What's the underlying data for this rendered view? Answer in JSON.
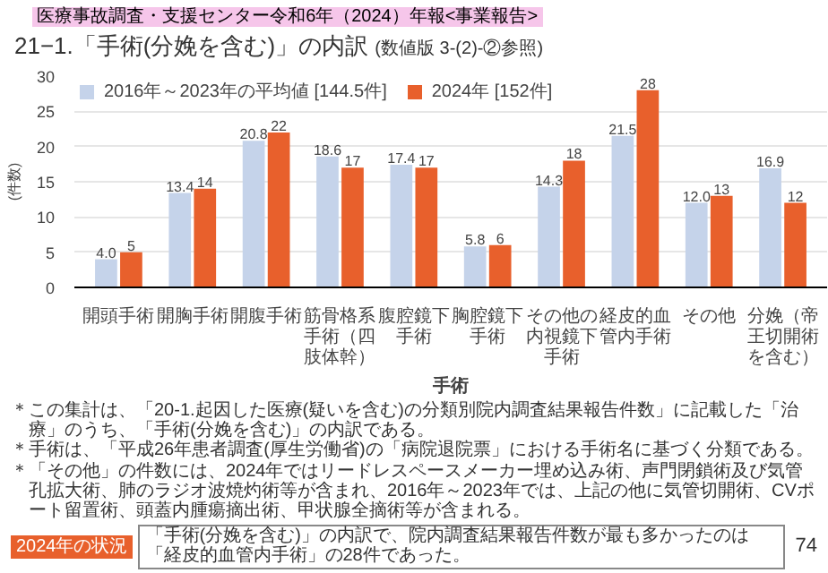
{
  "chart_data": {
    "type": "bar",
    "title": "21−1.「手術(分娩を含む)」の内訳",
    "subtitle": "(数値版 3-(2)-②参照)",
    "ylabel": "(件数)",
    "xlabel": "手術",
    "categories": [
      "開頭手術",
      "開胸手術",
      "開腹手術",
      "筋骨格系手術（四肢体幹）",
      "腹腔鏡下手術",
      "胸腔鏡下手術",
      "その他の内視鏡下手術",
      "経皮的血管内手術",
      "その他",
      "分娩（帝王切開術を含む）"
    ],
    "series": [
      {
        "name": "2016年～2023年の平均値 [144.5件]",
        "color": "#c5d3ea",
        "values": [
          4.0,
          13.4,
          20.8,
          18.6,
          17.4,
          5.8,
          14.3,
          21.5,
          12.0,
          16.9
        ],
        "value_labels": [
          "4.0",
          "13.4",
          "20.8",
          "18.6",
          "17.4",
          "5.8",
          "14.3",
          "21.5",
          "12.0",
          "16.9"
        ]
      },
      {
        "name": "2024年 [152件]",
        "color": "#e8602c",
        "values": [
          5,
          14,
          22,
          17,
          17,
          6,
          18,
          28,
          13,
          12
        ],
        "value_labels": [
          "5",
          "14",
          "22",
          "17",
          "17",
          "6",
          "18",
          "28",
          "13",
          "12"
        ]
      }
    ],
    "ylim": [
      0,
      30
    ],
    "yticks": [
      0,
      5,
      10,
      15,
      20,
      25,
      30
    ],
    "grid": "y",
    "legend": "top left",
    "annotations": [
      "医療事故調査・支援センター令和6年（2024）年報<事業報告>",
      "＊この集計は、「20-1.起因した医療(疑いを含む)の分類別院内調査結果報告件数」に記載した「治療」のうち、「手術(分娩を含む)」の内訳である。",
      "＊手術は、「平成26年患者調査(厚生労働省)の「病院退院票」における手術名に基づく分類である。",
      "＊「その他」の件数には、2024年ではリードレスペースメーカー埋め込み術、声門閉鎖術及び気管孔拡大術、肺のラジオ波焼灼術等が含まれ、2016年～2023年では、上記の他に気管切開術、CVポート留置術、頭蓋内腫瘍摘出術、甲状腺全摘術等が含まれる。",
      "2024年の状況",
      "「手術(分娩を含む)」の内訳で、院内調査結果報告件数が最も多かったのは「経皮的血管内手術」の28件であった。",
      "74"
    ]
  }
}
